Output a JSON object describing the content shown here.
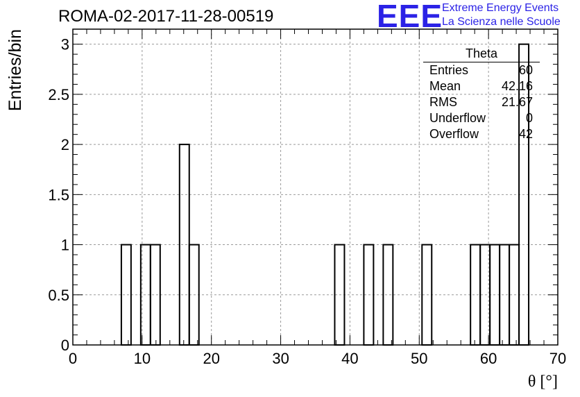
{
  "header": {
    "run_title": "ROMA-02-2017-11-28-00519",
    "logo_text": "EEE",
    "logo_line1": "Extreme Energy Events",
    "logo_line2": "La Scienza nelle Scuole",
    "logo_color": "#2b22e6"
  },
  "stats": {
    "title": "Theta",
    "rows": [
      {
        "label": "Entries",
        "value": "60"
      },
      {
        "label": "Mean",
        "value": "42.16"
      },
      {
        "label": "RMS",
        "value": "21.67"
      },
      {
        "label": "Underflow",
        "value": "0"
      },
      {
        "label": "Overflow",
        "value": "42"
      }
    ]
  },
  "chart_data": {
    "type": "histogram",
    "title": "ROMA-02-2017-11-28-00519",
    "xlabel": "θ [°]",
    "ylabel": "Entries/bin",
    "xlim": [
      0,
      70
    ],
    "ylim": [
      0,
      3.15
    ],
    "grid": true,
    "bin_width": 1.4,
    "bin_edges": [
      0,
      1.4,
      2.8,
      4.2,
      5.6,
      7,
      8.4,
      9.8,
      11.2,
      12.6,
      14,
      15.4,
      16.8,
      18.2,
      19.6,
      21,
      22.4,
      23.8,
      25.2,
      26.6,
      28,
      29.4,
      30.8,
      32.2,
      33.6,
      35,
      36.4,
      37.8,
      39.2,
      40.6,
      42,
      43.4,
      44.8,
      46.2,
      47.6,
      49,
      50.4,
      51.8,
      53.2,
      54.6,
      56,
      57.4,
      58.8,
      60.2,
      61.6,
      63,
      64.4,
      65.8,
      67.2,
      68.6,
      70
    ],
    "counts": [
      0,
      0,
      0,
      0,
      0,
      1,
      0,
      1,
      1,
      0,
      0,
      2,
      1,
      0,
      0,
      0,
      0,
      0,
      0,
      0,
      0,
      0,
      0,
      0,
      0,
      0,
      0,
      1,
      0,
      0,
      1,
      0,
      1,
      0,
      0,
      0,
      1,
      0,
      0,
      0,
      0,
      1,
      1,
      1,
      1,
      1,
      3,
      0,
      0,
      0
    ],
    "x_ticks": [
      "0",
      "10",
      "20",
      "30",
      "40",
      "50",
      "60",
      "70"
    ],
    "y_ticks": [
      "0",
      "0.5",
      "1",
      "1.5",
      "2",
      "2.5",
      "3"
    ]
  }
}
